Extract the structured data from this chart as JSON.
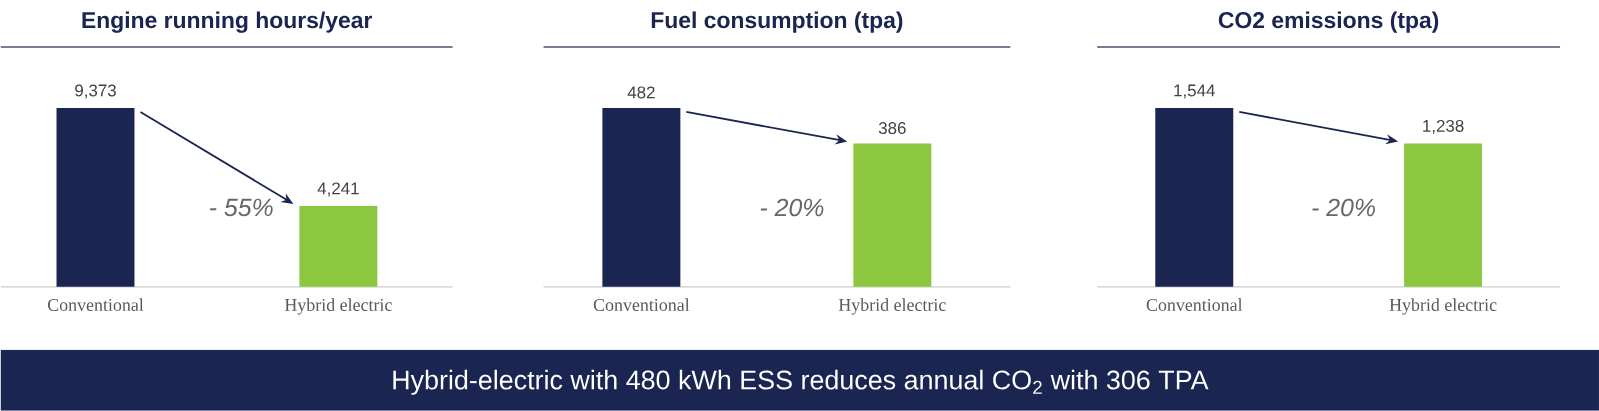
{
  "chart_data": [
    {
      "type": "bar",
      "title": "Engine running hours/year",
      "categories": [
        "Conventional",
        "Hybrid electric"
      ],
      "values": [
        9373,
        4241
      ],
      "colors": [
        "#1b2551",
        "#8dc63f"
      ],
      "value_labels": [
        "9,373",
        "4,241"
      ],
      "annotations": [
        "- 55%"
      ]
    },
    {
      "type": "bar",
      "title": "Fuel consumption (tpa)",
      "categories": [
        "Conventional",
        "Hybrid electric"
      ],
      "values": [
        482,
        386
      ],
      "colors": [
        "#1b2551",
        "#8dc63f"
      ],
      "value_labels": [
        "482",
        "386"
      ],
      "annotations": [
        "- 20%"
      ]
    },
    {
      "type": "bar",
      "title": "CO2 emissions (tpa)",
      "categories": [
        "Conventional",
        "Hybrid electric"
      ],
      "values": [
        1544,
        1238
      ],
      "colors": [
        "#1b2551",
        "#8dc63f"
      ],
      "value_labels": [
        "1,544",
        "1,238"
      ],
      "annotations": [
        "- 20%"
      ]
    },
    {
      "type": "other",
      "title": "Hybrid-electric with 480 kWh ESS reduces annual CO$_{2}$ with 306 TPA"
    }
  ]
}
